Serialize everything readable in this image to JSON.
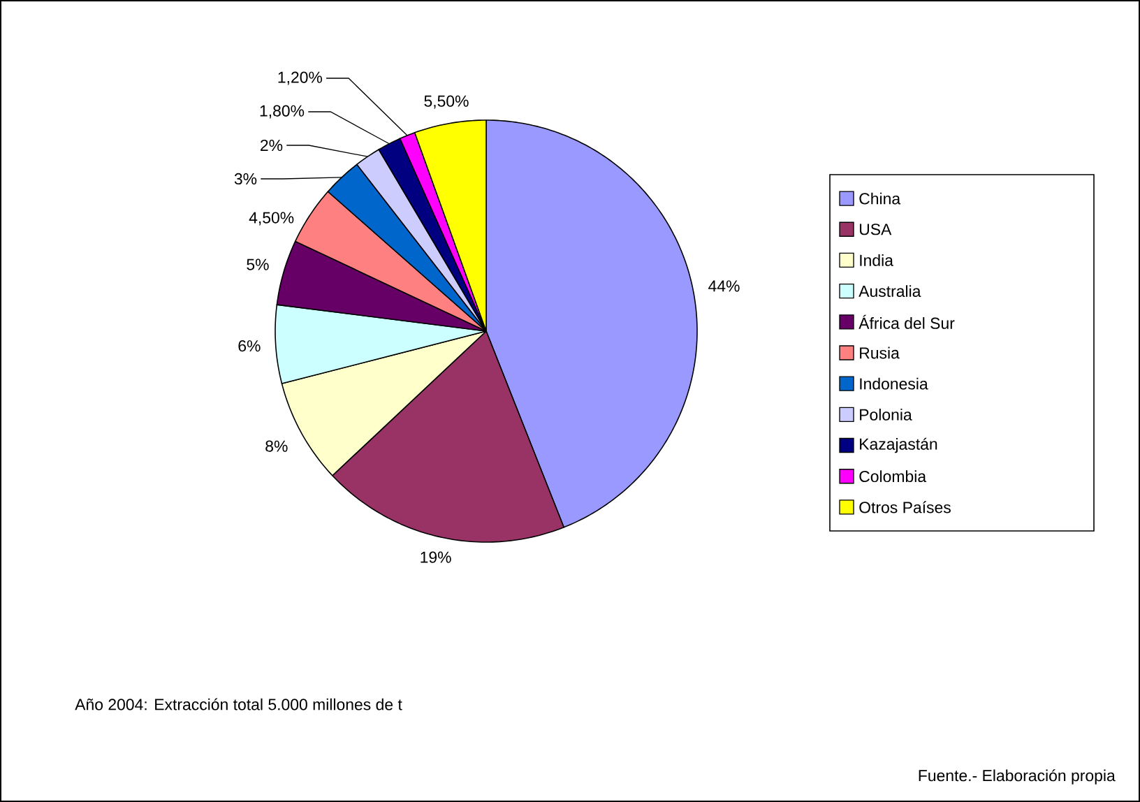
{
  "chart_data": {
    "type": "pie",
    "categories": [
      "China",
      "USA",
      "India",
      "Australia",
      "África del Sur",
      "Rusia",
      "Indonesia",
      "Polonia",
      "Kazajastán",
      "Colombia",
      "Otros Países"
    ],
    "values": [
      44,
      19,
      8,
      6,
      5,
      4.5,
      3,
      2,
      1.8,
      1.2,
      5.5
    ],
    "colors": [
      "#9999ff",
      "#993366",
      "#ffffcc",
      "#ccffff",
      "#660066",
      "#ff8080",
      "#0066cc",
      "#ccccff",
      "#000080",
      "#ff00ff",
      "#ffff00"
    ],
    "value_labels": [
      "44%",
      "19%",
      "8%",
      "6%",
      "5%",
      "4,50%",
      "3%",
      "2%",
      "1,80%",
      "1,20%",
      "5,50%"
    ],
    "legend": "right",
    "annotations": [
      "Año 2004: Extracción total 5.000 millones de t",
      "Fuente.- Elaboración propia"
    ]
  }
}
